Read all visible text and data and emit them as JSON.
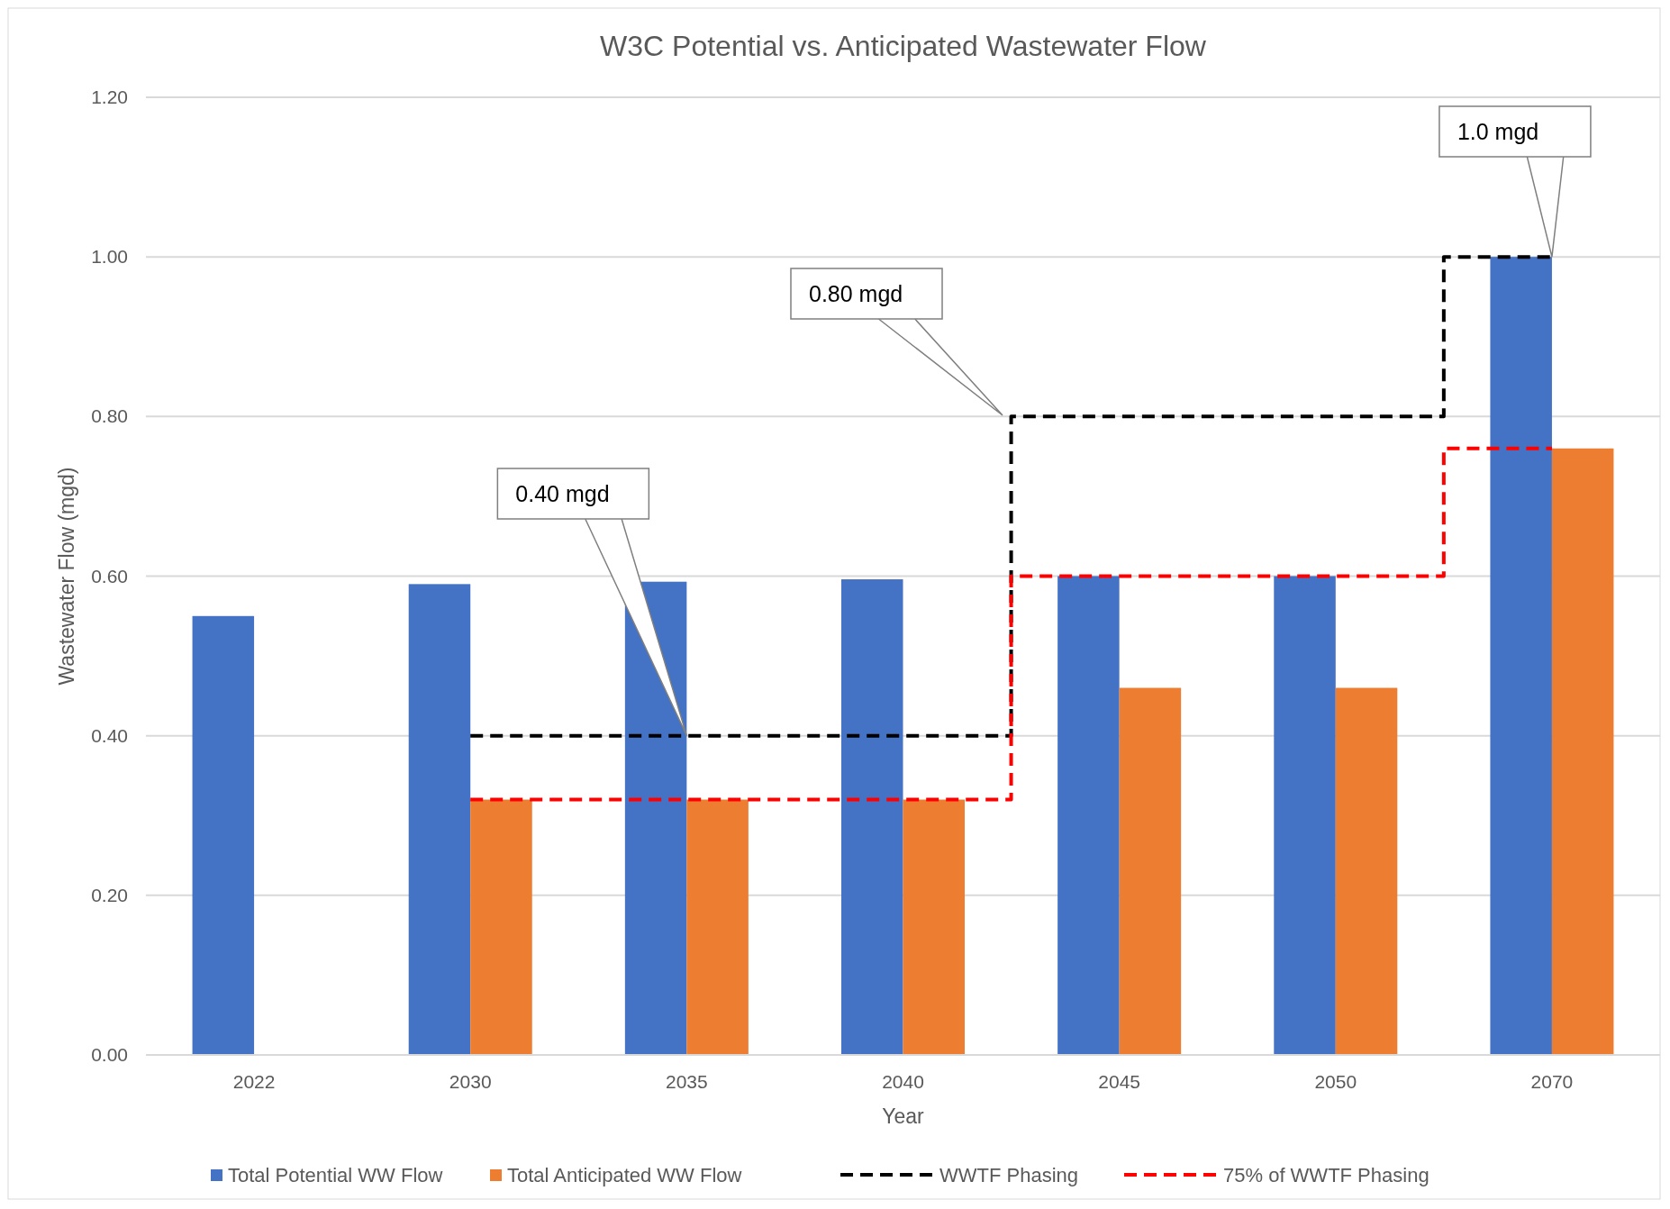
{
  "chart_data": {
    "type": "bar",
    "title": "W3C Potential vs. Anticipated Wastewater Flow",
    "xlabel": "Year",
    "ylabel": "Wastewater Flow (mgd)",
    "categories": [
      "2022",
      "2030",
      "2035",
      "2040",
      "2045",
      "2050",
      "2070"
    ],
    "series": [
      {
        "name": "Total Potential WW Flow",
        "color": "#4472c4",
        "values": [
          0.55,
          0.59,
          0.593,
          0.596,
          0.6,
          0.6,
          1.0
        ]
      },
      {
        "name": "Total Anticipated WW Flow",
        "color": "#ed7d31",
        "values": [
          null,
          0.32,
          0.32,
          0.32,
          0.46,
          0.46,
          0.76
        ]
      },
      {
        "name": "WWTF Phasing",
        "type": "step",
        "color": "#000000",
        "line_style": "dashed",
        "values": [
          null,
          0.4,
          0.4,
          0.4,
          0.8,
          0.8,
          1.0
        ]
      },
      {
        "name": "75% of WWTF Phasing",
        "type": "step",
        "color": "#ff0000",
        "line_style": "dashed",
        "values": [
          null,
          0.32,
          0.32,
          0.32,
          0.6,
          0.6,
          0.76
        ]
      }
    ],
    "ylim": [
      0,
      1.2
    ],
    "yticks": [
      {
        "value": 0,
        "label": "0.00"
      },
      {
        "value": 0.2,
        "label": "0.20"
      },
      {
        "value": 0.4,
        "label": "0.40"
      },
      {
        "value": 0.6,
        "label": "0.60"
      },
      {
        "value": 0.8,
        "label": "0.80"
      },
      {
        "value": 1.0,
        "label": "1.00"
      },
      {
        "value": 1.2,
        "label": "1.20"
      }
    ],
    "grid": "y",
    "legend": "bottom",
    "annotations": [
      {
        "text": "0.40 mgd",
        "x": "2035",
        "y": 0.4
      },
      "0.80 mgd",
      {
        "text": "1.0 mgd",
        "x": "2070",
        "y": 1.0
      }
    ]
  }
}
